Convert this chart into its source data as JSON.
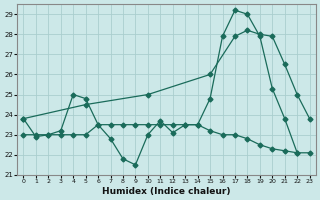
{
  "xlabel": "Humidex (Indice chaleur)",
  "bg_color": "#cce8e8",
  "grid_color": "#aacece",
  "line_color": "#1a6b5a",
  "xlim": [
    -0.5,
    23.5
  ],
  "ylim": [
    21,
    29.5
  ],
  "yticks": [
    21,
    22,
    23,
    24,
    25,
    26,
    27,
    28,
    29
  ],
  "xticks": [
    0,
    1,
    2,
    3,
    4,
    5,
    6,
    7,
    8,
    9,
    10,
    11,
    12,
    13,
    14,
    15,
    16,
    17,
    18,
    19,
    20,
    21,
    22,
    23
  ],
  "series1_x": [
    0,
    1,
    2,
    3,
    4,
    5,
    6,
    7,
    8,
    9,
    10,
    11,
    12,
    13,
    14,
    15,
    16,
    17,
    18,
    19,
    20,
    21,
    22
  ],
  "series1_y": [
    23.8,
    22.9,
    23.0,
    23.2,
    25.0,
    24.8,
    23.5,
    22.8,
    21.8,
    21.5,
    23.0,
    23.7,
    23.1,
    23.5,
    23.5,
    24.8,
    27.9,
    29.2,
    29.0,
    27.9,
    25.3,
    23.8,
    22.1
  ],
  "series2_x": [
    0,
    5,
    10,
    15,
    17,
    18,
    19,
    20,
    21,
    22,
    23
  ],
  "series2_y": [
    23.8,
    24.5,
    25.0,
    26.0,
    27.9,
    28.2,
    28.0,
    27.9,
    26.5,
    25.0,
    23.8
  ],
  "series3_x": [
    0,
    1,
    2,
    3,
    4,
    5,
    6,
    7,
    8,
    9,
    10,
    11,
    12,
    13,
    14,
    15,
    16,
    17,
    18,
    19,
    20,
    21,
    22,
    23
  ],
  "series3_y": [
    23.0,
    23.0,
    23.0,
    23.0,
    23.0,
    23.0,
    23.5,
    23.5,
    23.5,
    23.5,
    23.5,
    23.5,
    23.5,
    23.5,
    23.5,
    23.2,
    23.0,
    23.0,
    22.8,
    22.5,
    22.3,
    22.2,
    22.1,
    22.1
  ]
}
